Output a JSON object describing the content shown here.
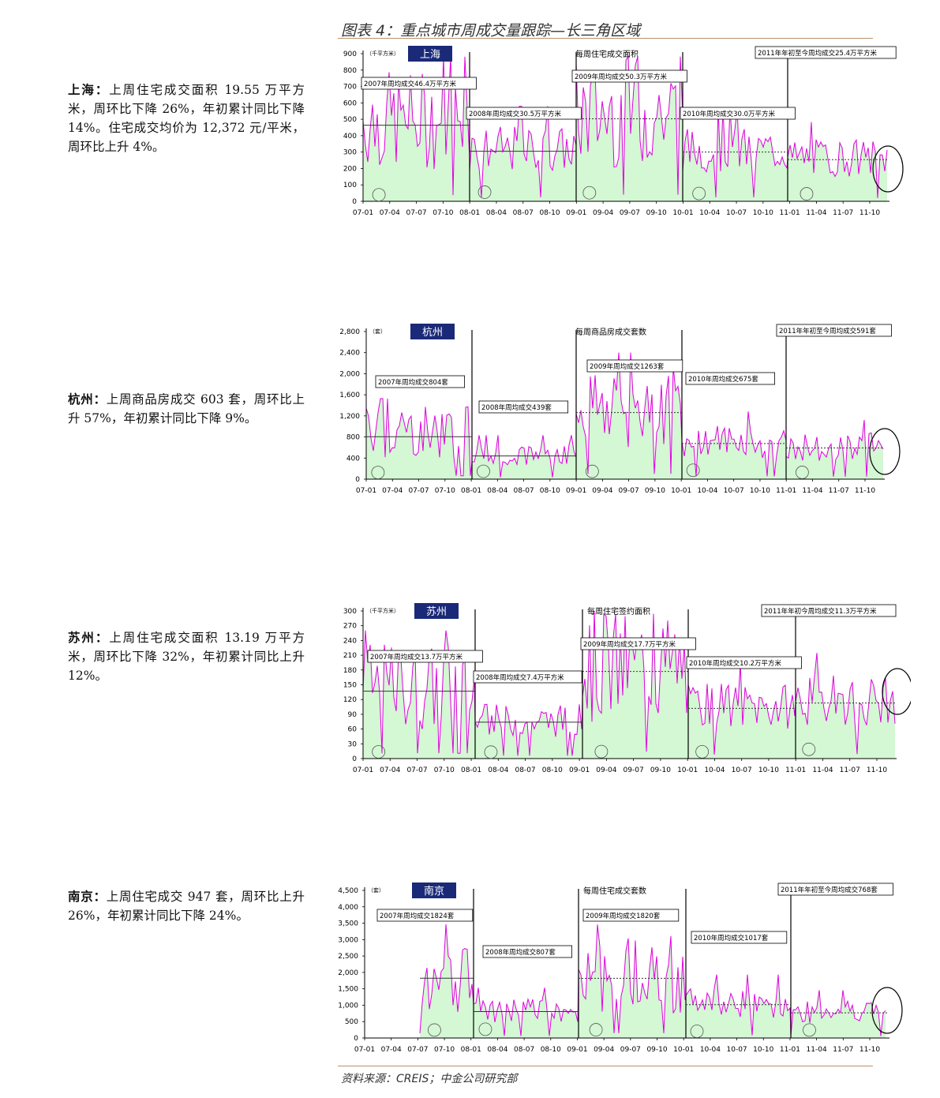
{
  "figure_title": "图表 4：重点城市周成交量跟踪—长三角区域",
  "source": "资料来源：CREIS；中金公司研究部",
  "colors": {
    "line": "#e000e0",
    "fill": "#d4f7d4",
    "accent_rule": "#b9926a",
    "badge": "#1a2a78"
  },
  "descriptions": [
    {
      "city": "上海：",
      "text": "上周住宅成交面积 19.55 万平方米，周环比下降 26%，年初累计同比下降 14%。住宅成交均价为 12,372 元/平米，周环比上升 4%。"
    },
    {
      "city": "杭州：",
      "text": "上周商品房成交 603 套，周环比上升 57%，年初累计同比下降 9%。"
    },
    {
      "city": "苏州：",
      "text": "上周住宅成交面积 13.19 万平方米，周环比下降 32%，年初累计同比上升 12%。"
    },
    {
      "city": "南京：",
      "text": "上周住宅成交 947 套，周环比上升 26%，年初累计同比下降 24%。"
    }
  ],
  "chart_data": [
    {
      "type": "area",
      "badge": "上海",
      "unit": "（千平方米）",
      "title": "每周住宅成交面积",
      "x_ticks": [
        "07-01",
        "07-04",
        "07-07",
        "07-10",
        "08-01",
        "08-04",
        "08-07",
        "08-10",
        "09-01",
        "09-04",
        "09-07",
        "09-10",
        "10-01",
        "10-04",
        "10-07",
        "10-10",
        "11-01",
        "11-04",
        "11-07",
        "11-10"
      ],
      "y_ticks": [
        "0",
        "100",
        "200",
        "300",
        "400",
        "500",
        "600",
        "700",
        "800",
        "900"
      ],
      "ylim": [
        0,
        900
      ],
      "year_averages": [
        {
          "label": "2007年周均成交46.4万平方米",
          "value": 464
        },
        {
          "label": "2008年周均成交30.5万平方米",
          "value": 305
        },
        {
          "label": "2009年周均成交50.3万平方米",
          "value": 503
        },
        {
          "label": "2010年周均成交30.0万平方米",
          "value": 300
        },
        {
          "label": "2011年年初至今周均成交25.4万平方米",
          "value": 254
        }
      ]
    },
    {
      "type": "area",
      "badge": "杭州",
      "unit": "（套）",
      "title": "每周商品房成交套数",
      "x_ticks": [
        "07-01",
        "07-04",
        "07-07",
        "07-10",
        "08-01",
        "08-04",
        "08-07",
        "08-10",
        "09-01",
        "09-04",
        "09-07",
        "09-10",
        "10-01",
        "10-04",
        "10-07",
        "10-10",
        "11-01",
        "11-04",
        "11-07",
        "11-10"
      ],
      "y_ticks": [
        "0",
        "400",
        "800",
        "1,200",
        "1,600",
        "2,000",
        "2,400",
        "2,800"
      ],
      "ylim": [
        0,
        2800
      ],
      "year_averages": [
        {
          "label": "2007年周均成交804套",
          "value": 804
        },
        {
          "label": "2008年周均成交439套",
          "value": 439
        },
        {
          "label": "2009年周均成交1263套",
          "value": 1263
        },
        {
          "label": "2010年周均成交675套",
          "value": 675
        },
        {
          "label": "2011年年初至今周均成交591套",
          "value": 591
        }
      ]
    },
    {
      "type": "area",
      "badge": "苏州",
      "unit": "（千平方米）",
      "title": "每周住宅签约面积",
      "x_ticks": [
        "07-01",
        "07-04",
        "07-07",
        "07-10",
        "08-01",
        "08-04",
        "08-07",
        "08-10",
        "09-01",
        "09-04",
        "09-07",
        "09-10",
        "10-01",
        "10-04",
        "10-07",
        "10-10",
        "11-01",
        "11-04",
        "11-07",
        "11-10"
      ],
      "y_ticks": [
        "0",
        "30",
        "60",
        "90",
        "120",
        "150",
        "180",
        "210",
        "240",
        "270",
        "300"
      ],
      "ylim": [
        0,
        300
      ],
      "year_averages": [
        {
          "label": "2007年周均成交13.7万平方米",
          "value": 137
        },
        {
          "label": "2008年周均成交7.4万平方米",
          "value": 74
        },
        {
          "label": "2009年周均成交17.7万平方米",
          "value": 177
        },
        {
          "label": "2010年周均成交10.2万平方米",
          "value": 102
        },
        {
          "label": "2011年年初今周均成交11.3万平方米",
          "value": 113
        }
      ]
    },
    {
      "type": "area",
      "badge": "南京",
      "unit": "（套）",
      "title": "每周住宅成交套数",
      "x_ticks": [
        "07-01",
        "07-04",
        "07-07",
        "07-10",
        "08-01",
        "08-04",
        "08-07",
        "08-10",
        "09-01",
        "09-04",
        "09-07",
        "09-10",
        "10-01",
        "10-04",
        "10-07",
        "10-10",
        "11-01",
        "11-04",
        "11-07",
        "11-10"
      ],
      "y_ticks": [
        "0",
        "500",
        "1,000",
        "1,500",
        "2,000",
        "2,500",
        "3,000",
        "3,500",
        "4,000",
        "4,500"
      ],
      "ylim": [
        0,
        4500
      ],
      "year_averages": [
        {
          "label": "2007年周均成交1824套",
          "value": 1824
        },
        {
          "label": "2008年周均成交807套",
          "value": 807
        },
        {
          "label": "2009年周均成交1820套",
          "value": 1820
        },
        {
          "label": "2010年周均成交1017套",
          "value": 1017
        },
        {
          "label": "2011年年初至今周均成交768套",
          "value": 768
        }
      ]
    }
  ]
}
